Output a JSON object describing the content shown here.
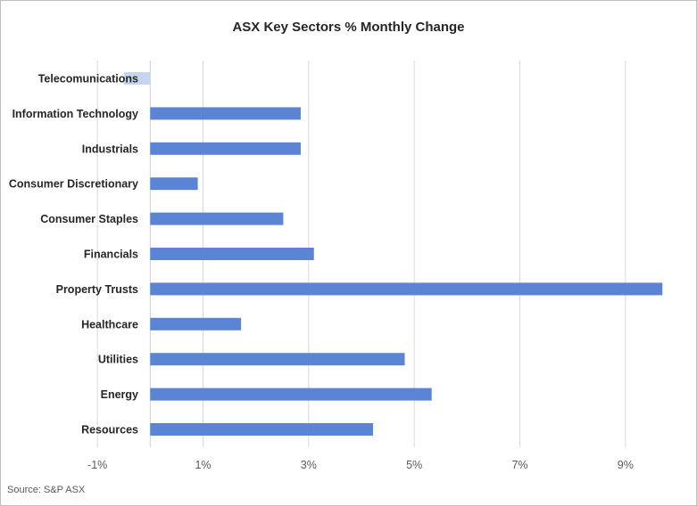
{
  "chart_data": {
    "type": "bar",
    "orientation": "horizontal",
    "title": "ASX Key Sectors % Monthly Change",
    "source": "Source: S&P ASX",
    "categories": [
      "Telecomunications",
      "Information Technology",
      "Industrials",
      "Consumer Discretionary",
      "Consumer Staples",
      "Financials",
      "Property Trusts",
      "Healthcare",
      "Utilities",
      "Energy",
      "Resources"
    ],
    "values": [
      -0.5,
      2.85,
      2.85,
      0.9,
      2.52,
      3.1,
      9.7,
      1.72,
      4.82,
      5.33,
      4.22
    ],
    "bar_colors": [
      "#c5d5ee",
      "#5b84d4",
      "#5b84d4",
      "#5b84d4",
      "#5b84d4",
      "#5b84d4",
      "#5b84d4",
      "#5b84d4",
      "#5b84d4",
      "#5b84d4",
      "#5b84d4"
    ],
    "x_ticks": [
      -1,
      1,
      3,
      5,
      7,
      9
    ],
    "x_tick_labels": [
      "-1%",
      "1%",
      "3%",
      "5%",
      "7%",
      "9%"
    ],
    "xlim": [
      -2,
      10
    ],
    "grid": true,
    "legend": "none"
  }
}
